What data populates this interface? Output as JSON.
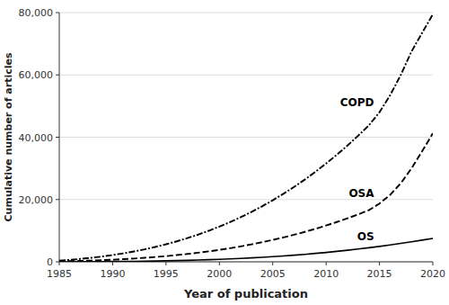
{
  "chart_data": {
    "type": "line",
    "xlabel": "Year of publication",
    "ylabel": "Cumulative number of articles",
    "x": [
      1985,
      1986,
      1987,
      1988,
      1989,
      1990,
      1991,
      1992,
      1993,
      1994,
      1995,
      1996,
      1997,
      1998,
      1999,
      2000,
      2001,
      2002,
      2003,
      2004,
      2005,
      2006,
      2007,
      2008,
      2009,
      2010,
      2011,
      2012,
      2013,
      2014,
      2015,
      2016,
      2017,
      2018,
      2019,
      2020
    ],
    "series": [
      {
        "name": "COPD",
        "color": "#000000",
        "line_style": "dashdot",
        "values": [
          390,
          640,
          940,
          1290,
          1700,
          2170,
          2710,
          3320,
          4010,
          4780,
          5630,
          6570,
          7600,
          8730,
          9960,
          11300,
          12750,
          14320,
          16010,
          17820,
          19760,
          21830,
          24040,
          26390,
          28890,
          31540,
          34350,
          37320,
          40460,
          43770,
          48000,
          53500,
          60000,
          67500,
          73500,
          79430
        ]
      },
      {
        "name": "OSA",
        "color": "#000000",
        "line_style": "dashed",
        "values": [
          119,
          200,
          295,
          407,
          537,
          687,
          860,
          1058,
          1284,
          1540,
          1828,
          2151,
          2511,
          2911,
          3353,
          3840,
          4374,
          4957,
          5591,
          6278,
          7021,
          7822,
          8683,
          9607,
          10596,
          11651,
          12774,
          13967,
          15230,
          16565,
          18700,
          21500,
          25200,
          30000,
          35500,
          41236
        ]
      },
      {
        "name": "OS",
        "color": "#000000",
        "line_style": "solid",
        "values": [
          7,
          17,
          30,
          47,
          68,
          94,
          125,
          163,
          208,
          261,
          323,
          395,
          478,
          573,
          681,
          803,
          940,
          1093,
          1263,
          1451,
          1658,
          1885,
          2133,
          2403,
          2695,
          3010,
          3349,
          3712,
          4100,
          4513,
          4952,
          5416,
          5906,
          6422,
          6964,
          7500
        ]
      }
    ],
    "xlim": [
      1985,
      2020
    ],
    "ylim": [
      0,
      80000
    ],
    "xticks": [
      1985,
      1990,
      1995,
      2000,
      2005,
      2010,
      2015,
      2020
    ],
    "yticks": [
      0,
      {
        "value": 20000,
        "label": "20,000"
      },
      {
        "value": 40000,
        "label": "40,000"
      },
      {
        "value": 60000,
        "label": "60,000"
      },
      {
        "value": 80000,
        "label": "80,000"
      }
    ],
    "grid": true
  }
}
